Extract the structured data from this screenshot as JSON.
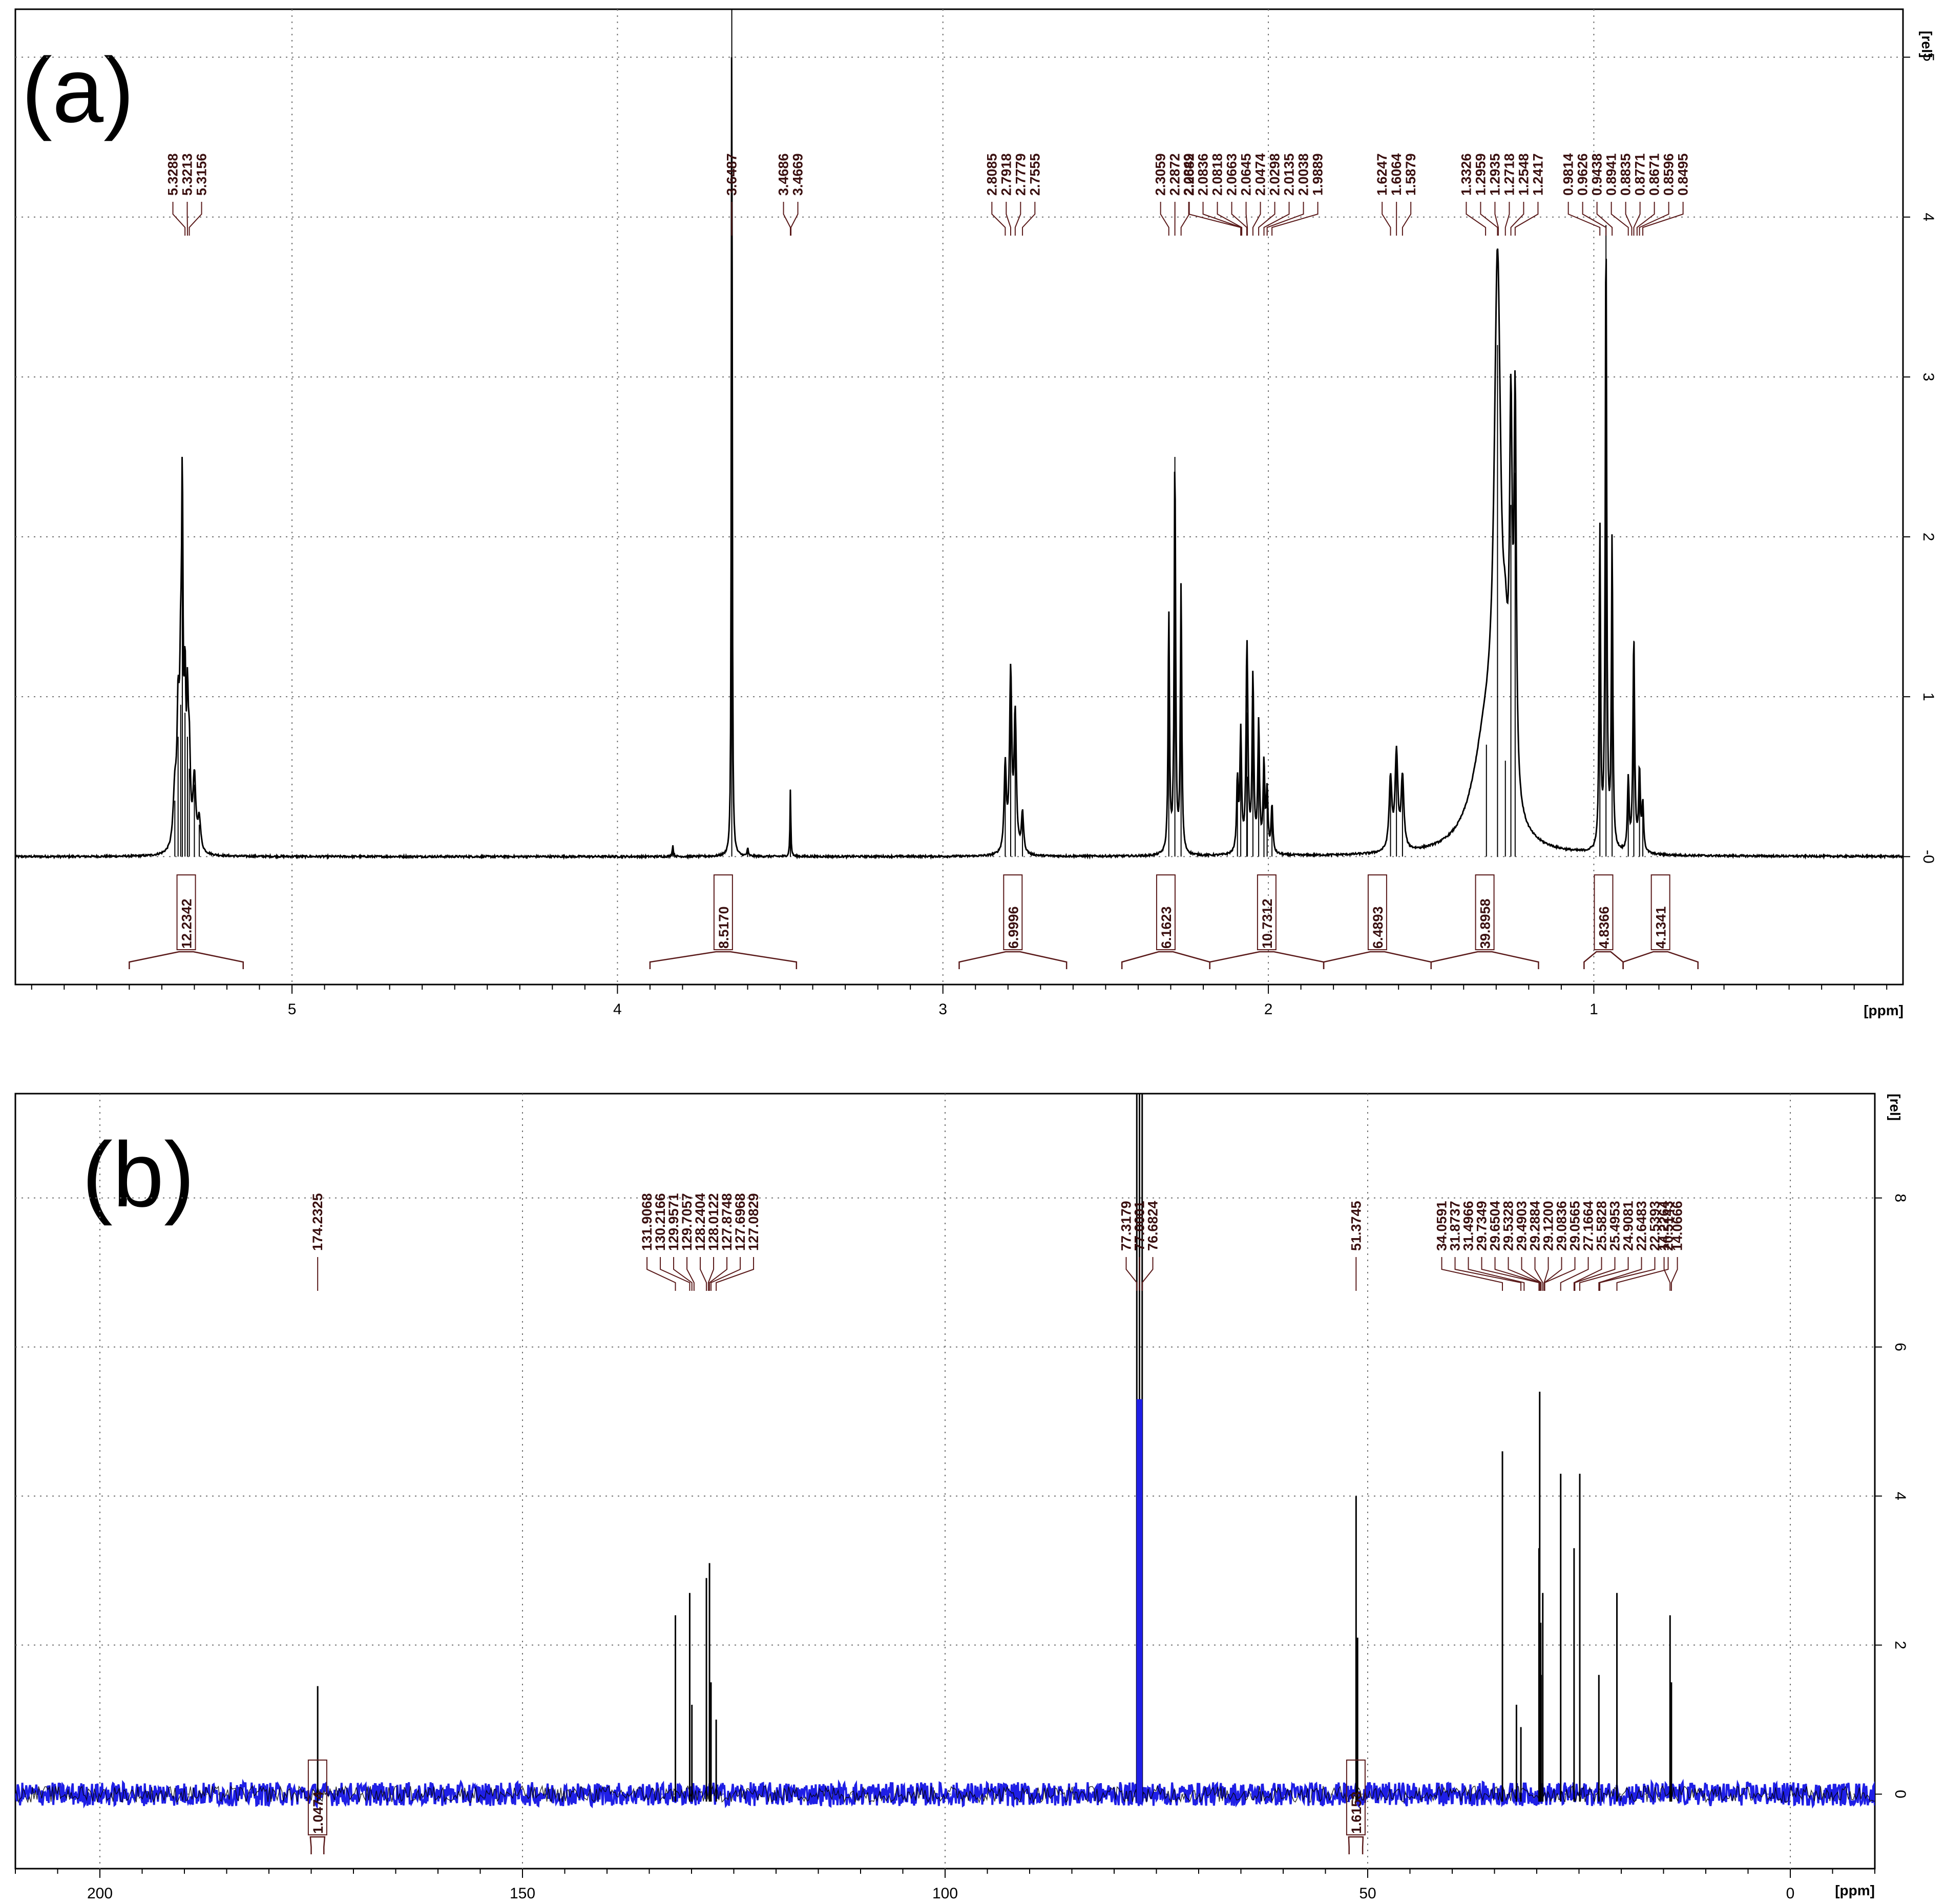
{
  "colors": {
    "spectrum_line": "#000000",
    "noise_blue": "#1f1fe6",
    "label_text": "#3a1010",
    "connector": "#5a1a1a",
    "connector_fill": "#c81414",
    "grid": "#707070"
  },
  "chart_data": [
    {
      "type": "line",
      "panel_label": "(a)",
      "xunit": "[ppm]",
      "yunit": "[rel]",
      "xlim": [
        5.85,
        0.05
      ],
      "ylim": [
        -0.8,
        5.3
      ],
      "x_ticks": [
        5,
        4,
        3,
        2,
        1
      ],
      "y_ticks": [
        5,
        4,
        3,
        2,
        1,
        0
      ],
      "y_tick_labels": [
        "5",
        "4",
        "3",
        "2",
        "1",
        "-0"
      ],
      "grid": true,
      "peak_labels": [
        {
          "text": "5.3288",
          "x": 5.3288
        },
        {
          "text": "5.3213",
          "x": 5.3213
        },
        {
          "text": "5.3156",
          "x": 5.3156
        },
        {
          "text": "3.6487",
          "x": 3.6487
        },
        {
          "text": "3.4686",
          "x": 3.4686
        },
        {
          "text": "3.4669",
          "x": 3.4669
        },
        {
          "text": "2.8085",
          "x": 2.8085
        },
        {
          "text": "2.7918",
          "x": 2.7918
        },
        {
          "text": "2.7779",
          "x": 2.7779
        },
        {
          "text": "2.7555",
          "x": 2.7555
        },
        {
          "text": "2.3059",
          "x": 2.3059
        },
        {
          "text": "2.2872",
          "x": 2.2872
        },
        {
          "text": "2.2682",
          "x": 2.2682
        },
        {
          "text": "2.0849",
          "x": 2.0849
        },
        {
          "text": "2.0836",
          "x": 2.0836
        },
        {
          "text": "2.0818",
          "x": 2.0818
        },
        {
          "text": "2.0663",
          "x": 2.0663
        },
        {
          "text": "2.0645",
          "x": 2.0645
        },
        {
          "text": "2.0474",
          "x": 2.0474
        },
        {
          "text": "2.0298",
          "x": 2.0298
        },
        {
          "text": "2.0135",
          "x": 2.0135
        },
        {
          "text": "2.0038",
          "x": 2.0038
        },
        {
          "text": "1.9889",
          "x": 1.9889
        },
        {
          "text": "1.6247",
          "x": 1.6247
        },
        {
          "text": "1.6064",
          "x": 1.6064
        },
        {
          "text": "1.5879",
          "x": 1.5879
        },
        {
          "text": "1.3326",
          "x": 1.3326
        },
        {
          "text": "1.2959",
          "x": 1.2959
        },
        {
          "text": "1.2935",
          "x": 1.2935
        },
        {
          "text": "1.2718",
          "x": 1.2718
        },
        {
          "text": "1.2548",
          "x": 1.2548
        },
        {
          "text": "1.2417",
          "x": 1.2417
        },
        {
          "text": "0.9814",
          "x": 0.9814
        },
        {
          "text": "0.9626",
          "x": 0.9626
        },
        {
          "text": "0.9438",
          "x": 0.9438
        },
        {
          "text": "0.8941",
          "x": 0.8941
        },
        {
          "text": "0.8835",
          "x": 0.8835
        },
        {
          "text": "0.8771",
          "x": 0.8771
        },
        {
          "text": "0.8671",
          "x": 0.8671
        },
        {
          "text": "0.8596",
          "x": 0.8596
        },
        {
          "text": "0.8495",
          "x": 0.8495
        }
      ],
      "integrals": [
        {
          "text": "12.2342",
          "from": 5.5,
          "to": 5.15
        },
        {
          "text": "8.5170",
          "from": 3.9,
          "to": 3.45
        },
        {
          "text": "6.9996",
          "from": 2.95,
          "to": 2.62
        },
        {
          "text": "6.1623",
          "from": 2.45,
          "to": 2.18
        },
        {
          "text": "10.7312",
          "from": 2.18,
          "to": 1.83
        },
        {
          "text": "6.4893",
          "from": 1.83,
          "to": 1.5
        },
        {
          "text": "39.8958",
          "from": 1.5,
          "to": 1.17
        },
        {
          "text": "4.8366",
          "from": 1.03,
          "to": 0.91
        },
        {
          "text": "4.1341",
          "from": 0.91,
          "to": 0.68
        }
      ],
      "peaks": [
        {
          "x": 5.36,
          "y": 0.35,
          "w": 0.006
        },
        {
          "x": 5.35,
          "y": 0.75,
          "w": 0.004
        },
        {
          "x": 5.342,
          "y": 0.95,
          "w": 0.004
        },
        {
          "x": 5.337,
          "y": 1.95,
          "w": 0.0025
        },
        {
          "x": 5.3288,
          "y": 0.9,
          "w": 0.003
        },
        {
          "x": 5.3213,
          "y": 0.75,
          "w": 0.003
        },
        {
          "x": 5.3156,
          "y": 0.55,
          "w": 0.004
        },
        {
          "x": 5.3,
          "y": 0.45,
          "w": 0.005
        },
        {
          "x": 5.285,
          "y": 0.2,
          "w": 0.005
        },
        {
          "x": 3.6487,
          "y": 5.6,
          "w": 0.0015
        },
        {
          "x": 3.4686,
          "y": 0.42,
          "w": 0.0015
        },
        {
          "x": 3.83,
          "y": 0.07,
          "w": 0.002
        },
        {
          "x": 3.6,
          "y": 0.05,
          "w": 0.002
        },
        {
          "x": 2.8085,
          "y": 0.55,
          "w": 0.004
        },
        {
          "x": 2.7918,
          "y": 1.12,
          "w": 0.004
        },
        {
          "x": 2.7779,
          "y": 0.85,
          "w": 0.004
        },
        {
          "x": 2.7555,
          "y": 0.25,
          "w": 0.004
        },
        {
          "x": 2.3059,
          "y": 1.5,
          "w": 0.0025
        },
        {
          "x": 2.2872,
          "y": 2.5,
          "w": 0.0025
        },
        {
          "x": 2.2682,
          "y": 1.68,
          "w": 0.0025
        },
        {
          "x": 2.095,
          "y": 0.45,
          "w": 0.003
        },
        {
          "x": 2.0849,
          "y": 0.75,
          "w": 0.003
        },
        {
          "x": 2.0663,
          "y": 0.9,
          "w": 0.003
        },
        {
          "x": 2.0645,
          "y": 0.5,
          "w": 0.003
        },
        {
          "x": 2.0474,
          "y": 1.1,
          "w": 0.003
        },
        {
          "x": 2.0298,
          "y": 0.8,
          "w": 0.003
        },
        {
          "x": 2.0135,
          "y": 0.55,
          "w": 0.003
        },
        {
          "x": 2.0038,
          "y": 0.38,
          "w": 0.003
        },
        {
          "x": 1.9889,
          "y": 0.3,
          "w": 0.003
        },
        {
          "x": 1.6247,
          "y": 0.45,
          "w": 0.005
        },
        {
          "x": 1.6064,
          "y": 0.6,
          "w": 0.005
        },
        {
          "x": 1.5879,
          "y": 0.45,
          "w": 0.005
        },
        {
          "x": 1.33,
          "y": 0.7,
          "w": 0.05
        },
        {
          "x": 1.2959,
          "y": 3.2,
          "w": 0.012
        },
        {
          "x": 1.2718,
          "y": 0.6,
          "w": 0.01
        },
        {
          "x": 1.2548,
          "y": 2.2,
          "w": 0.005
        },
        {
          "x": 1.2417,
          "y": 2.4,
          "w": 0.004
        },
        {
          "x": 0.9814,
          "y": 2.0,
          "w": 0.0025
        },
        {
          "x": 0.9626,
          "y": 3.95,
          "w": 0.0025
        },
        {
          "x": 0.9438,
          "y": 1.95,
          "w": 0.0025
        },
        {
          "x": 0.8941,
          "y": 0.45,
          "w": 0.003
        },
        {
          "x": 0.8771,
          "y": 1.35,
          "w": 0.003
        },
        {
          "x": 0.8596,
          "y": 0.5,
          "w": 0.003
        },
        {
          "x": 0.8495,
          "y": 0.3,
          "w": 0.003
        }
      ]
    },
    {
      "type": "line",
      "panel_label": "(b)",
      "xunit": "[ppm]",
      "yunit": "[rel]",
      "xlim": [
        210,
        -10
      ],
      "ylim": [
        -1.0,
        9.4
      ],
      "x_ticks": [
        200,
        150,
        100,
        50,
        0
      ],
      "y_ticks": [
        8,
        6,
        4,
        2,
        0
      ],
      "y_tick_labels": [
        "8",
        "6",
        "4",
        "2",
        "0"
      ],
      "grid": true,
      "peak_labels": [
        {
          "text": "174.2325",
          "x": 174.2325
        },
        {
          "text": "131.9068",
          "x": 131.9068
        },
        {
          "text": "130.2166",
          "x": 130.2166
        },
        {
          "text": "129.9571",
          "x": 129.9571
        },
        {
          "text": "129.7057",
          "x": 129.7057
        },
        {
          "text": "128.2404",
          "x": 128.2404
        },
        {
          "text": "128.0122",
          "x": 128.0122
        },
        {
          "text": "127.8748",
          "x": 127.8748
        },
        {
          "text": "127.6968",
          "x": 127.6968
        },
        {
          "text": "127.0829",
          "x": 127.0829
        },
        {
          "text": "77.3179",
          "x": 77.3179
        },
        {
          "text": "77.0001",
          "x": 77.0001
        },
        {
          "text": "76.6824",
          "x": 76.6824
        },
        {
          "text": "51.3745",
          "x": 51.3745
        },
        {
          "text": "34.0591",
          "x": 34.0591
        },
        {
          "text": "31.8737",
          "x": 31.8737
        },
        {
          "text": "31.4966",
          "x": 31.4966
        },
        {
          "text": "29.7349",
          "x": 29.7349
        },
        {
          "text": "29.6504",
          "x": 29.6504
        },
        {
          "text": "29.5328",
          "x": 29.5328
        },
        {
          "text": "29.4903",
          "x": 29.4903
        },
        {
          "text": "29.2884",
          "x": 29.2884
        },
        {
          "text": "29.1200",
          "x": 29.12
        },
        {
          "text": "29.0836",
          "x": 29.0836
        },
        {
          "text": "29.0565",
          "x": 29.0565
        },
        {
          "text": "27.1664",
          "x": 27.1664
        },
        {
          "text": "25.5828",
          "x": 25.5828
        },
        {
          "text": "25.4953",
          "x": 25.4953
        },
        {
          "text": "24.9081",
          "x": 24.9081
        },
        {
          "text": "22.6483",
          "x": 22.6483
        },
        {
          "text": "22.5393",
          "x": 22.5393
        },
        {
          "text": "20.5143",
          "x": 20.5143
        },
        {
          "text": "14.2264",
          "x": 14.2264
        },
        {
          "text": "14.0666",
          "x": 14.0666
        }
      ],
      "integrals": [
        {
          "text": "1.0474",
          "from": 175.0,
          "to": 173.5
        },
        {
          "text": "1.6153",
          "from": 52.2,
          "to": 50.6
        }
      ],
      "peaks": [
        {
          "x": 174.2325,
          "y": 1.45
        },
        {
          "x": 131.9068,
          "y": 2.4
        },
        {
          "x": 130.2166,
          "y": 2.7
        },
        {
          "x": 129.9571,
          "y": 1.2
        },
        {
          "x": 128.2404,
          "y": 2.9
        },
        {
          "x": 127.8748,
          "y": 3.1
        },
        {
          "x": 127.6968,
          "y": 1.5
        },
        {
          "x": 127.0829,
          "y": 1.0
        },
        {
          "x": 77.3179,
          "y": 9.8
        },
        {
          "x": 77.0001,
          "y": 9.8
        },
        {
          "x": 76.6824,
          "y": 9.8
        },
        {
          "x": 51.3745,
          "y": 4.0
        },
        {
          "x": 51.2,
          "y": 2.1
        },
        {
          "x": 34.0591,
          "y": 4.6
        },
        {
          "x": 32.4,
          "y": 1.2
        },
        {
          "x": 31.8737,
          "y": 0.9
        },
        {
          "x": 29.7349,
          "y": 3.3
        },
        {
          "x": 29.6504,
          "y": 5.4
        },
        {
          "x": 29.5328,
          "y": 2.3
        },
        {
          "x": 29.4903,
          "y": 1.6
        },
        {
          "x": 29.2884,
          "y": 2.7
        },
        {
          "x": 27.1664,
          "y": 4.3
        },
        {
          "x": 25.5828,
          "y": 3.3
        },
        {
          "x": 24.9081,
          "y": 4.3
        },
        {
          "x": 22.6483,
          "y": 1.6
        },
        {
          "x": 20.5143,
          "y": 2.7
        },
        {
          "x": 14.2264,
          "y": 2.4
        },
        {
          "x": 14.0666,
          "y": 1.5
        }
      ]
    }
  ]
}
